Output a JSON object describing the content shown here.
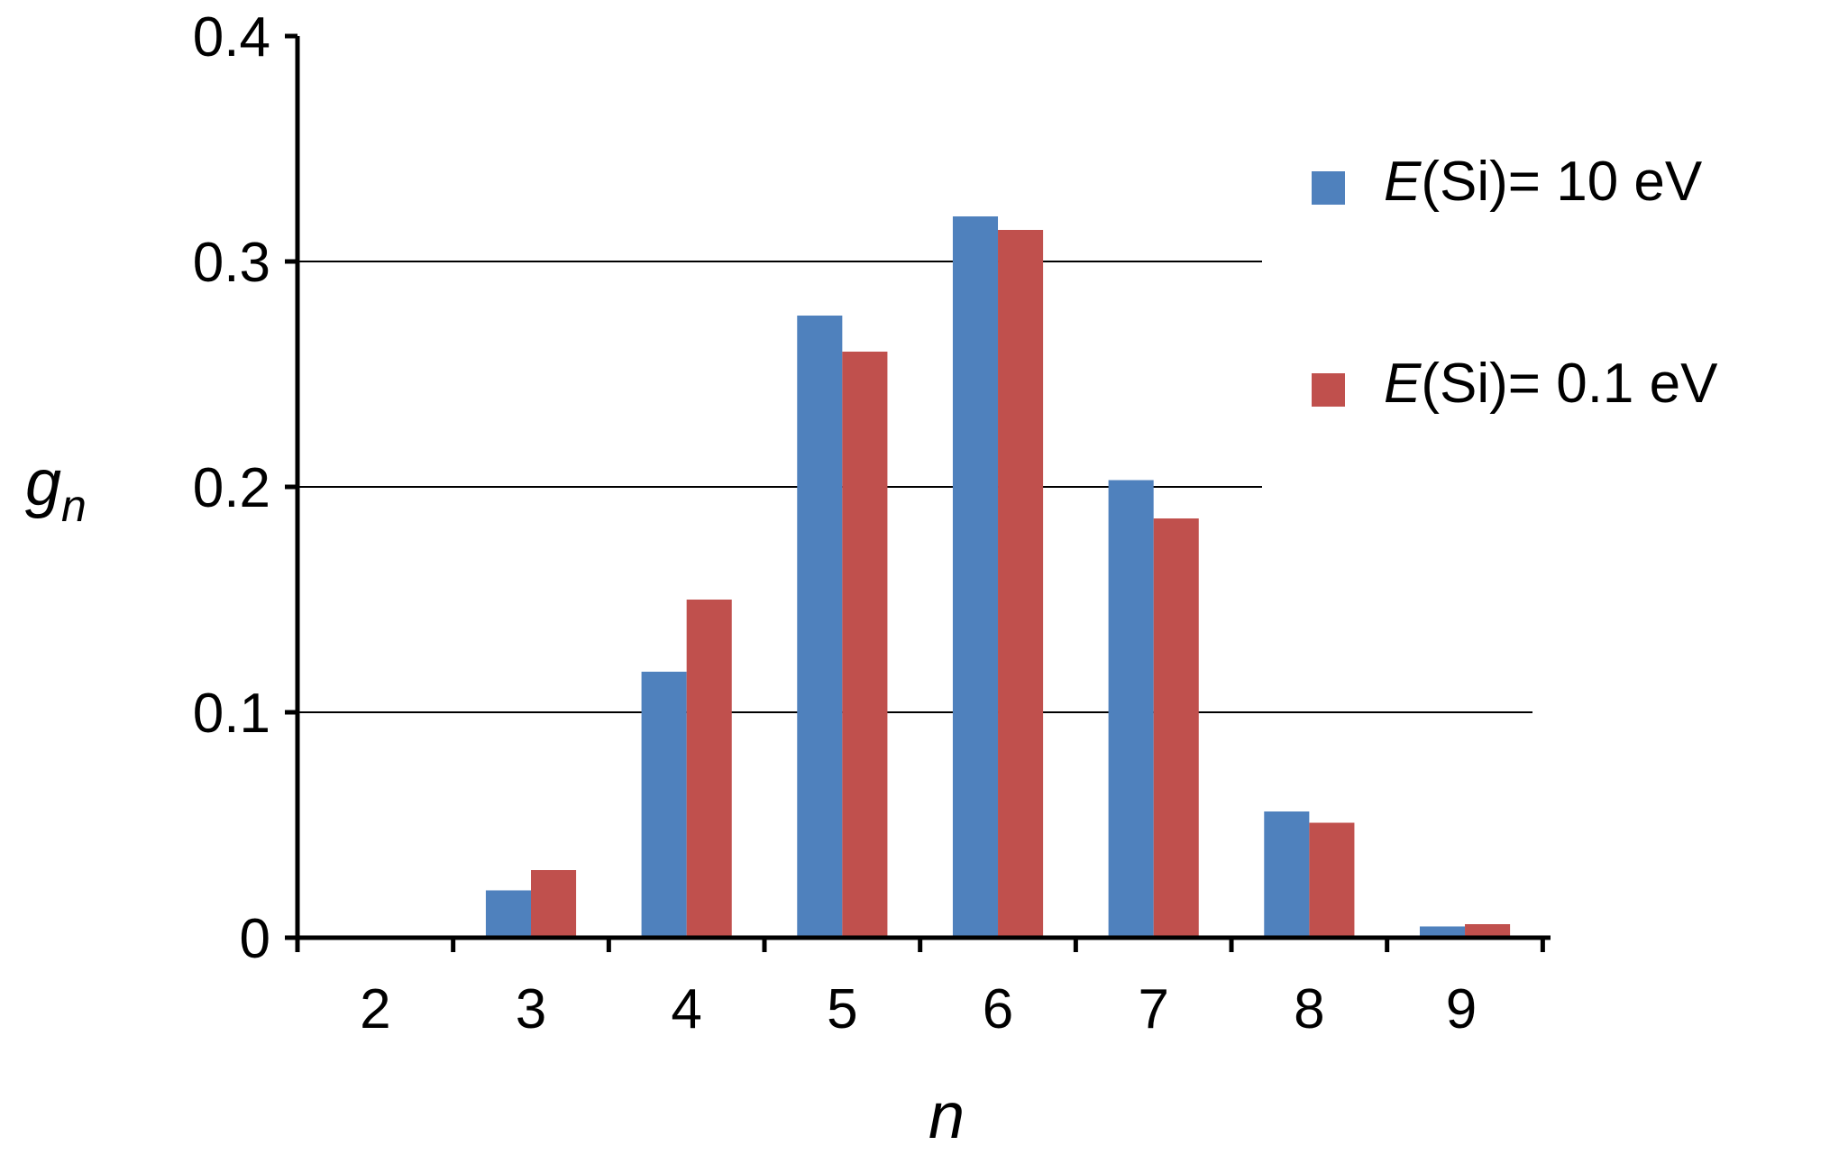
{
  "chart_data": {
    "type": "bar",
    "title": "",
    "xlabel": "n",
    "ylabel_main": "g",
    "ylabel_sub": "n",
    "categories": [
      "2",
      "3",
      "4",
      "5",
      "6",
      "7",
      "8",
      "9"
    ],
    "series": [
      {
        "name": "E(Si)= 10 eV",
        "name_italic": "E",
        "name_rest": "(Si)= 10 eV",
        "color": "#4f81bd",
        "values": [
          0,
          0.021,
          0.118,
          0.276,
          0.32,
          0.203,
          0.056,
          0.005
        ]
      },
      {
        "name": "E(Si)= 0.1 eV",
        "name_italic": "E",
        "name_rest": "(Si)= 0.1 eV",
        "color": "#c0504d",
        "values": [
          0,
          0.03,
          0.15,
          0.26,
          0.314,
          0.186,
          0.051,
          0.006
        ]
      }
    ],
    "yticks": [
      "0",
      "0.1",
      "0.2",
      "0.3",
      "0.4"
    ],
    "ylim": [
      0,
      0.4
    ],
    "grid": true,
    "legend": "right"
  }
}
